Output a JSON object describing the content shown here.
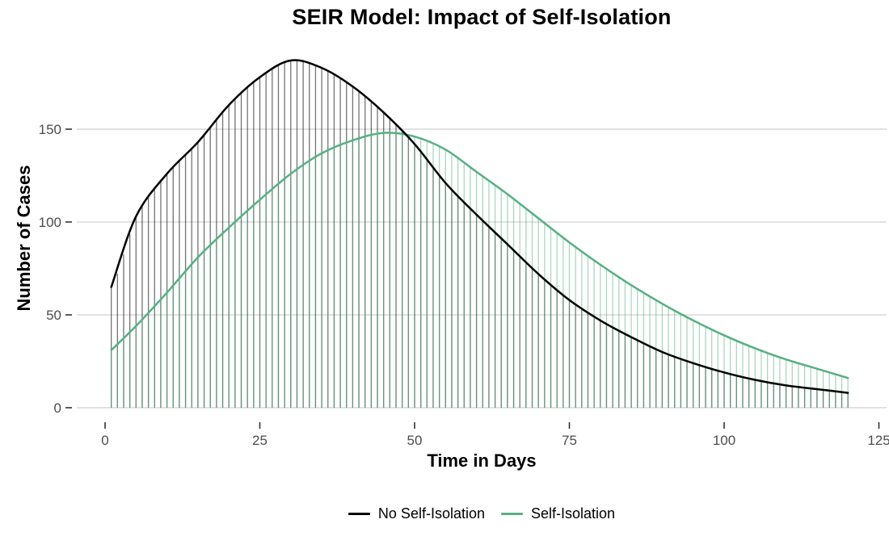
{
  "chart_data": {
    "type": "line",
    "variant": "smooth epidemic curves with daily vertical needle lines shading the area under each curve",
    "title": "SEIR Model: Impact of Self-Isolation",
    "xlabel": "Time in Days",
    "ylabel": "Number of Cases",
    "x_ticks": [
      0,
      25,
      50,
      75,
      100,
      125
    ],
    "y_ticks": [
      0,
      50,
      100,
      150
    ],
    "xlim": [
      0,
      125
    ],
    "ylim": [
      0,
      190
    ],
    "grid": {
      "horizontal": true,
      "vertical": false
    },
    "legend_position": "bottom-center",
    "needles": {
      "first_day": 1,
      "last_day": 120,
      "step_days": 1
    },
    "colors": {
      "grid": "#d8d8d8",
      "tick_mark": "#333333",
      "tick_label": "#4d4d4d",
      "background": "#ffffff"
    },
    "series": [
      {
        "name": "No Self-Isolation",
        "color": "#000000",
        "needle_opacity": 0.55,
        "days": [
          1,
          5,
          10,
          15,
          20,
          25,
          30,
          35,
          40,
          45,
          50,
          55,
          60,
          65,
          70,
          75,
          80,
          85,
          90,
          95,
          100,
          105,
          110,
          115,
          120
        ],
        "values": [
          65,
          103,
          126,
          143,
          163,
          178,
          187,
          183,
          173,
          159,
          142,
          121,
          104,
          88,
          72,
          58,
          47,
          38,
          30,
          24,
          19,
          15,
          12,
          10,
          8
        ]
      },
      {
        "name": "Self-Isolation",
        "color": "#57b083",
        "needle_opacity": 0.5,
        "days": [
          1,
          5,
          10,
          15,
          20,
          25,
          30,
          35,
          40,
          45,
          50,
          55,
          60,
          65,
          70,
          75,
          80,
          85,
          90,
          95,
          100,
          105,
          110,
          115,
          120
        ],
        "values": [
          31,
          44,
          62,
          81,
          97,
          112,
          126,
          137,
          144,
          148,
          146,
          139,
          127,
          115,
          102,
          89,
          77,
          66,
          56,
          47,
          39,
          32,
          26,
          21,
          16
        ]
      }
    ]
  }
}
